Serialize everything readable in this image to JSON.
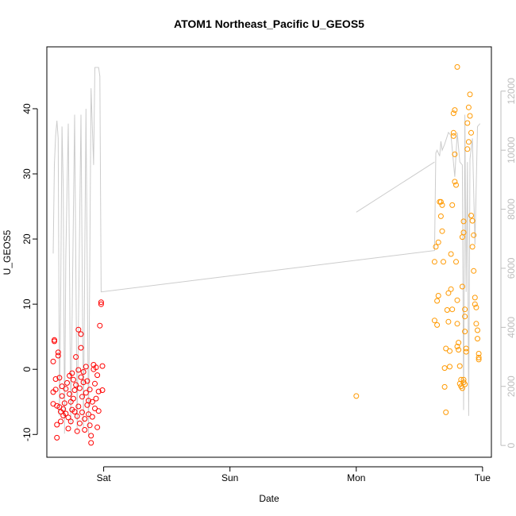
{
  "chart_data": {
    "type": "scatter",
    "title": "ATOM1 Northeast_Pacific U_GEOS5",
    "xlabel": "Date",
    "ylabel": "U_GEOS5",
    "x_axis": {
      "ticks": [
        {
          "value": 1,
          "label": "Sat"
        },
        {
          "value": 2,
          "label": "Sun"
        },
        {
          "value": 3,
          "label": "Mon"
        },
        {
          "value": 4,
          "label": "Tue"
        }
      ],
      "range": [
        0.55,
        4.07
      ]
    },
    "y_axis_left": {
      "ticks": [
        -10,
        0,
        10,
        20,
        30,
        40
      ],
      "range": [
        -13.5,
        49.5
      ]
    },
    "y_axis_right": {
      "ticks": [
        0,
        2000,
        4000,
        6000,
        8000,
        10000,
        12000
      ],
      "range": [
        -400,
        13500
      ],
      "color": "#bdbdbd"
    },
    "grid": false,
    "legend": "none",
    "series": [
      {
        "kind": "points",
        "axis": "left",
        "color": "#ff0000",
        "points": [
          [
            0.61,
            4.5
          ],
          [
            0.61,
            4.3
          ],
          [
            0.6,
            1.2
          ],
          [
            0.6,
            -3.5
          ],
          [
            0.6,
            -5.3
          ],
          [
            0.62,
            -1.5
          ],
          [
            0.62,
            -3.1
          ],
          [
            0.63,
            -5.6
          ],
          [
            0.63,
            -8.5
          ],
          [
            0.64,
            2.6
          ],
          [
            0.64,
            2.1
          ],
          [
            0.65,
            -1.3
          ],
          [
            0.65,
            -5.8
          ],
          [
            0.66,
            -6.5
          ],
          [
            0.66,
            -8.0
          ],
          [
            0.63,
            -10.5
          ],
          [
            0.67,
            -2.6
          ],
          [
            0.67,
            -4.1
          ],
          [
            0.68,
            -6.1
          ],
          [
            0.68,
            -7.1
          ],
          [
            0.69,
            -5.2
          ],
          [
            0.7,
            -3.0
          ],
          [
            0.7,
            -6.8
          ],
          [
            0.71,
            -2.1
          ],
          [
            0.72,
            -7.4
          ],
          [
            0.72,
            -9.1
          ],
          [
            0.73,
            -1.0
          ],
          [
            0.73,
            -3.8
          ],
          [
            0.74,
            -5.0
          ],
          [
            0.74,
            -8.0
          ],
          [
            0.75,
            -0.6
          ],
          [
            0.75,
            -6.2
          ],
          [
            0.76,
            -1.6
          ],
          [
            0.76,
            -4.5
          ],
          [
            0.77,
            -3.2
          ],
          [
            0.77,
            -6.5
          ],
          [
            0.78,
            1.9
          ],
          [
            0.78,
            -2.4
          ],
          [
            0.79,
            -7.2
          ],
          [
            0.79,
            -9.5
          ],
          [
            0.8,
            6.1
          ],
          [
            0.8,
            -0.1
          ],
          [
            0.8,
            -5.7
          ],
          [
            0.81,
            -2.9
          ],
          [
            0.81,
            -8.3
          ],
          [
            0.82,
            3.3
          ],
          [
            0.82,
            -1.2
          ],
          [
            0.82,
            5.4
          ],
          [
            0.83,
            -4.2
          ],
          [
            0.83,
            -6.6
          ],
          [
            0.84,
            -0.4
          ],
          [
            0.84,
            -2.0
          ],
          [
            0.85,
            -9.3
          ],
          [
            0.85,
            -7.6
          ],
          [
            0.86,
            0.4
          ],
          [
            0.86,
            -3.6
          ],
          [
            0.87,
            -5.5
          ],
          [
            0.87,
            -1.8
          ],
          [
            0.88,
            -6.9
          ],
          [
            0.88,
            -4.8
          ],
          [
            0.89,
            -8.6
          ],
          [
            0.89,
            -3.1
          ],
          [
            0.9,
            -10.2
          ],
          [
            0.9,
            -11.3
          ],
          [
            0.91,
            -7.3
          ],
          [
            0.91,
            -5.0
          ],
          [
            0.92,
            0.7
          ],
          [
            0.92,
            0.0
          ],
          [
            0.93,
            -2.2
          ],
          [
            0.93,
            -6.0
          ],
          [
            0.94,
            0.3
          ],
          [
            0.94,
            -4.5
          ],
          [
            0.95,
            -8.9
          ],
          [
            0.95,
            -0.9
          ],
          [
            0.96,
            -3.4
          ],
          [
            0.96,
            -6.4
          ],
          [
            0.97,
            6.7
          ],
          [
            0.98,
            10.3
          ],
          [
            0.98,
            10.0
          ],
          [
            0.99,
            0.5
          ],
          [
            0.99,
            -3.2
          ]
        ]
      },
      {
        "kind": "points",
        "axis": "left",
        "color": "#ff9900",
        "points": [
          [
            3.0,
            -4.1
          ],
          [
            3.62,
            7.5
          ],
          [
            3.62,
            16.5
          ],
          [
            3.63,
            18.8
          ],
          [
            3.64,
            10.5
          ],
          [
            3.64,
            6.8
          ],
          [
            3.65,
            11.3
          ],
          [
            3.65,
            19.5
          ],
          [
            3.66,
            25.7
          ],
          [
            3.67,
            25.7
          ],
          [
            3.67,
            23.5
          ],
          [
            3.68,
            21.2
          ],
          [
            3.68,
            25.2
          ],
          [
            3.69,
            16.5
          ],
          [
            3.7,
            0.2
          ],
          [
            3.7,
            -2.7
          ],
          [
            3.71,
            -6.6
          ],
          [
            3.71,
            3.2
          ],
          [
            3.72,
            9.1
          ],
          [
            3.73,
            11.7
          ],
          [
            3.73,
            7.3
          ],
          [
            3.74,
            2.8
          ],
          [
            3.74,
            0.4
          ],
          [
            3.75,
            17.7
          ],
          [
            3.75,
            12.3
          ],
          [
            3.76,
            9.2
          ],
          [
            3.76,
            25.2
          ],
          [
            3.77,
            35.8
          ],
          [
            3.77,
            36.3
          ],
          [
            3.77,
            39.3
          ],
          [
            3.78,
            39.8
          ],
          [
            3.78,
            33.0
          ],
          [
            3.78,
            28.8
          ],
          [
            3.79,
            28.3
          ],
          [
            3.79,
            16.5
          ],
          [
            3.8,
            10.6
          ],
          [
            3.8,
            7.0
          ],
          [
            3.8,
            3.5
          ],
          [
            3.81,
            4.1
          ],
          [
            3.81,
            3.0
          ],
          [
            3.82,
            0.5
          ],
          [
            3.82,
            -2.2
          ],
          [
            3.83,
            -1.6
          ],
          [
            3.83,
            -2.6
          ],
          [
            3.84,
            -2.9
          ],
          [
            3.84,
            12.7
          ],
          [
            3.84,
            20.3
          ],
          [
            3.85,
            22.7
          ],
          [
            3.85,
            21.0
          ],
          [
            3.86,
            5.8
          ],
          [
            3.86,
            8.1
          ],
          [
            3.86,
            9.2
          ],
          [
            3.87,
            2.7
          ],
          [
            3.87,
            3.2
          ],
          [
            3.88,
            37.8
          ],
          [
            3.88,
            33.8
          ],
          [
            3.89,
            34.9
          ],
          [
            3.89,
            40.2
          ],
          [
            3.9,
            42.2
          ],
          [
            3.9,
            38.9
          ],
          [
            3.91,
            36.3
          ],
          [
            3.91,
            23.6
          ],
          [
            3.92,
            22.8
          ],
          [
            3.92,
            18.8
          ],
          [
            3.93,
            15.1
          ],
          [
            3.93,
            20.6
          ],
          [
            3.94,
            10.0
          ],
          [
            3.94,
            11.0
          ],
          [
            3.95,
            9.5
          ],
          [
            3.95,
            7.0
          ],
          [
            3.96,
            6.0
          ],
          [
            3.96,
            4.7
          ],
          [
            3.97,
            2.4
          ],
          [
            3.97,
            1.8
          ],
          [
            3.97,
            1.5
          ],
          [
            3.8,
            46.4
          ],
          [
            3.85,
            -1.6
          ],
          [
            3.86,
            -2.3
          ],
          [
            3.85,
            -2.0
          ]
        ]
      },
      {
        "kind": "line",
        "axis": "right",
        "color": "#cccccc",
        "points": [
          [
            0.6,
            6500
          ],
          [
            0.61,
            9500
          ],
          [
            0.62,
            10500
          ],
          [
            0.63,
            11000
          ],
          [
            0.64,
            10400
          ],
          [
            0.65,
            1000
          ],
          [
            0.66,
            5200
          ],
          [
            0.67,
            10800
          ],
          [
            0.68,
            8700
          ],
          [
            0.69,
            400
          ],
          [
            0.7,
            6400
          ],
          [
            0.72,
            10900
          ],
          [
            0.74,
            700
          ],
          [
            0.77,
            11200
          ],
          [
            0.79,
            500
          ],
          [
            0.82,
            11200
          ],
          [
            0.84,
            600
          ],
          [
            0.86,
            11400
          ],
          [
            0.88,
            300
          ],
          [
            0.9,
            12100
          ],
          [
            0.92,
            9500
          ],
          [
            0.93,
            12800
          ],
          [
            0.96,
            12800
          ],
          [
            0.97,
            12500
          ],
          [
            0.98,
            5200
          ],
          [
            3.62,
            6600
          ],
          [
            3.63,
            9900
          ],
          [
            3.64,
            10000
          ],
          [
            3.66,
            9800
          ],
          [
            3.67,
            10300
          ],
          [
            3.68,
            10000
          ],
          [
            3.7,
            10200
          ],
          [
            3.73,
            10600
          ],
          [
            3.75,
            10500
          ],
          [
            3.78,
            9100
          ],
          [
            3.8,
            10600
          ],
          [
            3.82,
            9600
          ],
          [
            3.84,
            9500
          ],
          [
            3.85,
            1200
          ],
          [
            3.86,
            11200
          ],
          [
            3.87,
            5200
          ],
          [
            3.88,
            9600
          ],
          [
            3.89,
            1000
          ],
          [
            3.9,
            9700
          ],
          [
            3.92,
            10400
          ],
          [
            3.94,
            6800
          ],
          [
            3.96,
            10800
          ],
          [
            3.98,
            10900
          ]
        ]
      },
      {
        "kind": "line",
        "axis": "right",
        "color": "#cccccc",
        "points": [
          [
            3.0,
            7900
          ],
          [
            3.62,
            9600
          ]
        ]
      }
    ]
  }
}
